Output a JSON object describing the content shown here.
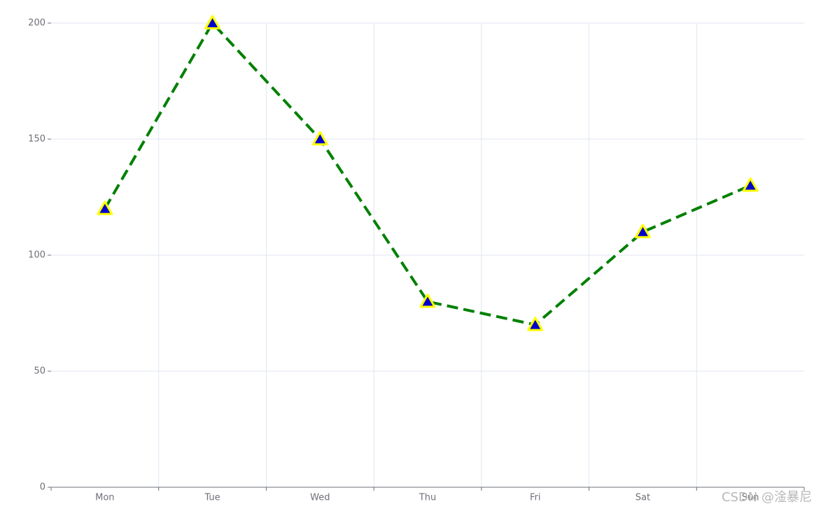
{
  "chart_data": {
    "type": "line",
    "categories": [
      "Mon",
      "Tue",
      "Wed",
      "Thu",
      "Fri",
      "Sat",
      "Sun"
    ],
    "values": [
      120,
      200,
      150,
      80,
      70,
      110,
      130
    ],
    "color": "#008000",
    "line_style": "dashed",
    "marker": "triangle",
    "marker_fill": "#0000cd",
    "marker_edge_color": "#ffff00",
    "ylim": [
      0,
      200
    ],
    "yticks": [
      0,
      50,
      100,
      150,
      200
    ],
    "grid": true
  },
  "watermark": "CSDN @淦暴尼"
}
